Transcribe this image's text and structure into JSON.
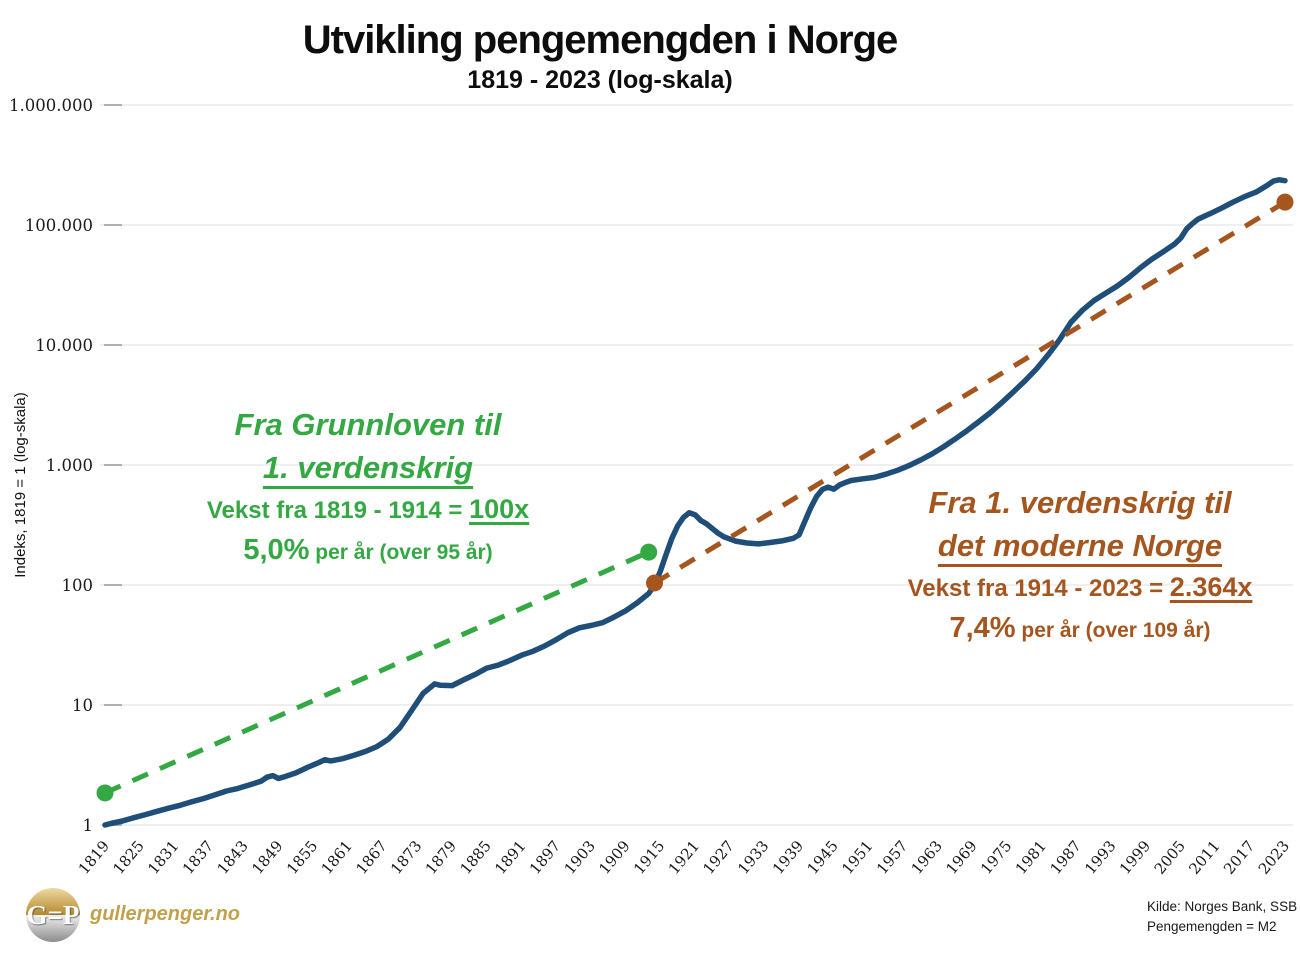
{
  "colors": {
    "m2_blue": "#1F4E79",
    "trend_green": "#34A843",
    "trend_brown": "#A5551E",
    "gridline": "#EAEAEA",
    "tick": "#AFAFAF",
    "axis_text": "#1a1a1a",
    "brand_gold": "#C2A14C",
    "logo_gold_light": "#EDD9A3",
    "logo_gold_dark": "#B5882B",
    "logo_silver_light": "#F0F0F0",
    "logo_silver_dark": "#8C8C8C"
  },
  "chart_data": {
    "type": "line",
    "title": "Utvikling pengemengden i Norge",
    "subtitle": "1819 - 2023 (log-skala)",
    "xlabel": "",
    "y_axis": {
      "title": "Indeks, 1819 = 1 (log-skala)",
      "scale": "log",
      "tick_values": [
        1000000,
        100000,
        10000,
        1000,
        100,
        10,
        1
      ],
      "tick_labels": [
        "1.000.000",
        "100.000",
        "10.000",
        "1.000",
        "100",
        "10",
        "1"
      ],
      "range": [
        1,
        1000000
      ],
      "grid": true
    },
    "x_axis": {
      "range": [
        1819,
        2023
      ],
      "tick_step": 6,
      "tick_labels": [
        "1819",
        "1825",
        "1831",
        "1837",
        "1843",
        "1849",
        "1855",
        "1861",
        "1867",
        "1873",
        "1879",
        "1885",
        "1891",
        "1897",
        "1903",
        "1909",
        "1915",
        "1921",
        "1927",
        "1933",
        "1939",
        "1945",
        "1951",
        "1957",
        "1963",
        "1969",
        "1975",
        "1981",
        "1987",
        "1993",
        "1999",
        "2005",
        "2011",
        "2017",
        "2023"
      ]
    },
    "legend": "none",
    "series": [
      {
        "name": "Pengemengden M2, indeks 1819 = 1",
        "style": "solid",
        "color": "#1F4E79",
        "width": 5.5,
        "points": [
          [
            1819,
            1.0
          ],
          [
            1820,
            1.03
          ],
          [
            1822,
            1.08
          ],
          [
            1824,
            1.15
          ],
          [
            1826,
            1.22
          ],
          [
            1828,
            1.3
          ],
          [
            1830,
            1.38
          ],
          [
            1832,
            1.46
          ],
          [
            1834,
            1.56
          ],
          [
            1836,
            1.66
          ],
          [
            1838,
            1.78
          ],
          [
            1840,
            1.92
          ],
          [
            1842,
            2.02
          ],
          [
            1844,
            2.16
          ],
          [
            1846,
            2.32
          ],
          [
            1847,
            2.5
          ],
          [
            1848,
            2.58
          ],
          [
            1849,
            2.44
          ],
          [
            1850,
            2.52
          ],
          [
            1852,
            2.72
          ],
          [
            1854,
            3.02
          ],
          [
            1856,
            3.32
          ],
          [
            1857,
            3.5
          ],
          [
            1858,
            3.42
          ],
          [
            1860,
            3.56
          ],
          [
            1862,
            3.8
          ],
          [
            1864,
            4.1
          ],
          [
            1866,
            4.5
          ],
          [
            1868,
            5.2
          ],
          [
            1870,
            6.5
          ],
          [
            1872,
            9.0
          ],
          [
            1874,
            12.5
          ],
          [
            1876,
            15.0
          ],
          [
            1877,
            14.6
          ],
          [
            1879,
            14.5
          ],
          [
            1881,
            16.2
          ],
          [
            1883,
            18.0
          ],
          [
            1885,
            20.3
          ],
          [
            1887,
            21.5
          ],
          [
            1889,
            23.5
          ],
          [
            1891,
            26.0
          ],
          [
            1893,
            28.0
          ],
          [
            1895,
            31.0
          ],
          [
            1897,
            35.0
          ],
          [
            1899,
            40.0
          ],
          [
            1901,
            44.0
          ],
          [
            1903,
            46.0
          ],
          [
            1905,
            48.5
          ],
          [
            1907,
            54.0
          ],
          [
            1909,
            61.0
          ],
          [
            1911,
            71.0
          ],
          [
            1913,
            85.0
          ],
          [
            1914,
            100
          ],
          [
            1915,
            130
          ],
          [
            1916,
            180
          ],
          [
            1917,
            245
          ],
          [
            1918,
            310
          ],
          [
            1919,
            365
          ],
          [
            1920,
            400
          ],
          [
            1921,
            385
          ],
          [
            1922,
            345
          ],
          [
            1923,
            323
          ],
          [
            1924,
            295
          ],
          [
            1925,
            270
          ],
          [
            1926,
            252
          ],
          [
            1927,
            242
          ],
          [
            1928,
            232
          ],
          [
            1930,
            224
          ],
          [
            1932,
            220
          ],
          [
            1934,
            226
          ],
          [
            1936,
            233
          ],
          [
            1938,
            245
          ],
          [
            1939,
            262
          ],
          [
            1940,
            340
          ],
          [
            1941,
            440
          ],
          [
            1942,
            545
          ],
          [
            1943,
            625
          ],
          [
            1944,
            655
          ],
          [
            1945,
            628
          ],
          [
            1946,
            683
          ],
          [
            1947,
            715
          ],
          [
            1948,
            743
          ],
          [
            1950,
            768
          ],
          [
            1952,
            788
          ],
          [
            1954,
            838
          ],
          [
            1956,
            903
          ],
          [
            1958,
            988
          ],
          [
            1960,
            1100
          ],
          [
            1962,
            1240
          ],
          [
            1964,
            1420
          ],
          [
            1966,
            1650
          ],
          [
            1968,
            1930
          ],
          [
            1970,
            2280
          ],
          [
            1972,
            2720
          ],
          [
            1974,
            3300
          ],
          [
            1976,
            4050
          ],
          [
            1978,
            5000
          ],
          [
            1980,
            6300
          ],
          [
            1982,
            8200
          ],
          [
            1984,
            11000
          ],
          [
            1986,
            15500
          ],
          [
            1988,
            19500
          ],
          [
            1990,
            23500
          ],
          [
            1992,
            27000
          ],
          [
            1994,
            31000
          ],
          [
            1996,
            36500
          ],
          [
            1998,
            44000
          ],
          [
            2000,
            52000
          ],
          [
            2002,
            60000
          ],
          [
            2004,
            70000
          ],
          [
            2005,
            78000
          ],
          [
            2006,
            93000
          ],
          [
            2007,
            103000
          ],
          [
            2008,
            112000
          ],
          [
            2009,
            118000
          ],
          [
            2010,
            124000
          ],
          [
            2012,
            138000
          ],
          [
            2014,
            155000
          ],
          [
            2016,
            172000
          ],
          [
            2018,
            188000
          ],
          [
            2020,
            215000
          ],
          [
            2021,
            232000
          ],
          [
            2022,
            238000
          ],
          [
            2023,
            234000
          ]
        ]
      },
      {
        "name": "Trend 1819-1914: 5,0% per ar (100x)",
        "style": "dashed",
        "color": "#34A843",
        "width": 5,
        "endpoint_dots": true,
        "points": [
          [
            1819,
            1.85
          ],
          [
            1913,
            188
          ]
        ]
      },
      {
        "name": "Trend 1914-2023: 7,4% per ar (2.364x)",
        "style": "dashed",
        "color": "#A5551E",
        "width": 5,
        "endpoint_dots": true,
        "points": [
          [
            1914,
            104
          ],
          [
            2023,
            155000
          ]
        ]
      }
    ]
  },
  "annotations": {
    "green": {
      "heading_line1": "Fra Grunnloven til",
      "heading_line2": "1. verdenskrig",
      "growth_prefix": "Vekst fra 1819 - 1914 = ",
      "growth_value": "100x",
      "rate_value": "5,0%",
      "rate_suffix": " per år (over 95 år)"
    },
    "brown": {
      "heading_line1": "Fra 1. verdenskrig til",
      "heading_line2": "det moderne Norge",
      "growth_prefix": "Vekst fra 1914 - 2023 = ",
      "growth_value": "2.364x",
      "rate_value": "7,4%",
      "rate_suffix": " per år (over 109 år)"
    }
  },
  "footer": {
    "brand": "gullerpenger.no",
    "logo_letters": "G=P",
    "source_line1": "Kilde: Norges Bank, SSB",
    "source_line2": "Pengemengden = M2"
  }
}
